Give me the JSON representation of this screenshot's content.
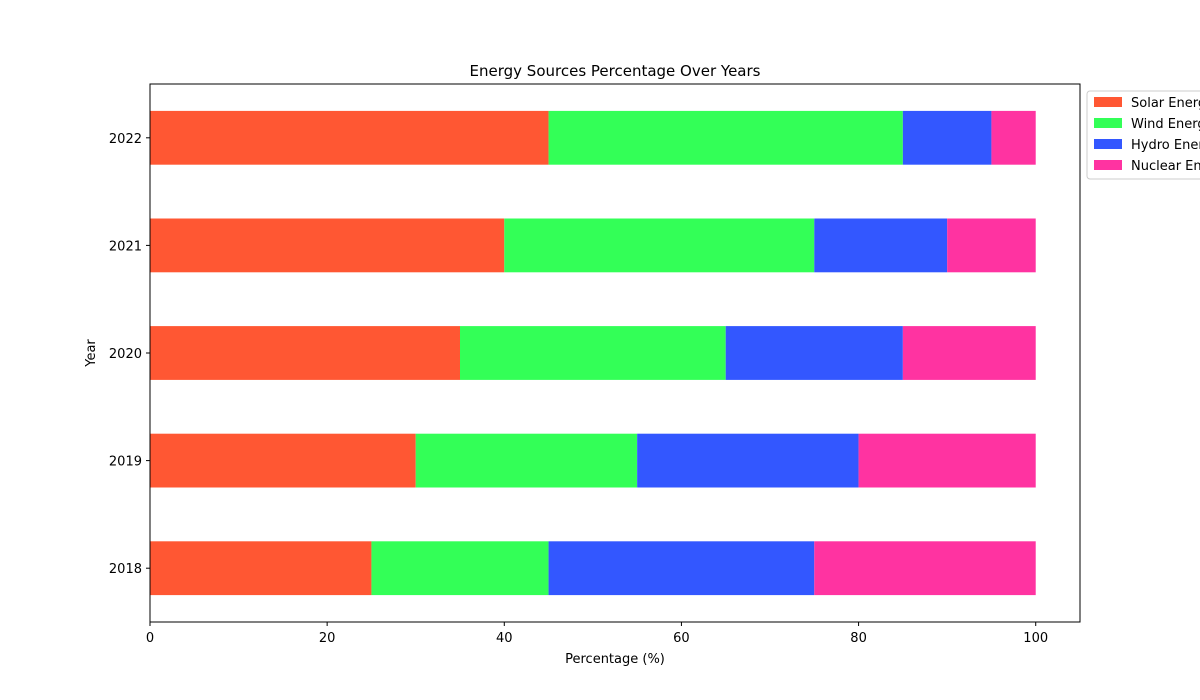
{
  "chart_data": {
    "type": "bar",
    "orientation": "horizontal",
    "stacked": true,
    "title": "Energy Sources Percentage Over Years",
    "xlabel": "Percentage (%)",
    "ylabel": "Year",
    "xlim": [
      0,
      105
    ],
    "xticks": [
      0,
      20,
      40,
      60,
      80,
      100
    ],
    "categories": [
      "2018",
      "2019",
      "2020",
      "2021",
      "2022"
    ],
    "series": [
      {
        "name": "Solar Energy",
        "color": "#ff5733",
        "values": [
          25,
          30,
          35,
          40,
          45
        ]
      },
      {
        "name": "Wind Energy",
        "color": "#33ff57",
        "values": [
          20,
          25,
          30,
          35,
          40
        ]
      },
      {
        "name": "Hydro Energy",
        "color": "#3357ff",
        "values": [
          30,
          25,
          20,
          15,
          10
        ]
      },
      {
        "name": "Nuclear Energy",
        "color": "#ff33a1",
        "values": [
          25,
          20,
          15,
          10,
          5
        ]
      }
    ],
    "legend": {
      "placement": "outside-top-right"
    },
    "grid": false
  }
}
